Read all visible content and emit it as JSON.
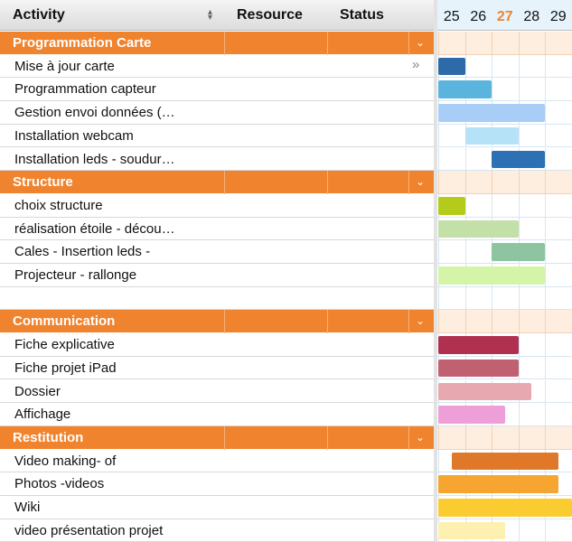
{
  "header": {
    "columns": [
      "Activity",
      "Resource",
      "Status"
    ]
  },
  "days": [
    25,
    26,
    27,
    28,
    29
  ],
  "today": 27,
  "groups": [
    {
      "name": "Programmation Carte",
      "tasks": [
        {
          "name": "Mise à jour carte",
          "start": 25,
          "end": 26,
          "color": "#2d6aa8"
        },
        {
          "name": "Programmation capteur",
          "start": 25,
          "end": 27,
          "color": "#5ab4dd"
        },
        {
          "name": "Gestion envoi données (…",
          "start": 25,
          "end": 29,
          "color": "#a8cdf7"
        },
        {
          "name": "Installation webcam",
          "start": 26,
          "end": 28,
          "color": "#b5e2f7"
        },
        {
          "name": "Installation leds - soudur…",
          "start": 27,
          "end": 29,
          "color": "#2b71b3"
        }
      ]
    },
    {
      "name": "Structure",
      "tasks": [
        {
          "name": "choix structure",
          "start": 25,
          "end": 26,
          "color": "#b5cb1c"
        },
        {
          "name": "réalisation étoile - décou…",
          "start": 25,
          "end": 28,
          "color": "#c2e0a8"
        },
        {
          "name": "Cales - Insertion leds -",
          "start": 27,
          "end": 29,
          "color": "#8fc4a0"
        },
        {
          "name": "Projecteur - rallonge",
          "start": 25,
          "end": 29,
          "color": "#d4f5a8"
        },
        {
          "name": null
        }
      ]
    },
    {
      "name": "Communication",
      "tasks": [
        {
          "name": "Fiche explicative",
          "start": 25,
          "end": 28,
          "color": "#b03050"
        },
        {
          "name": "Fiche projet iPad",
          "start": 25,
          "end": 28,
          "color": "#c06070"
        },
        {
          "name": "Dossier",
          "start": 25,
          "end": 28.5,
          "color": "#e8a8b0"
        },
        {
          "name": "Affichage",
          "start": 25,
          "end": 27.5,
          "color": "#ee9fd8"
        }
      ]
    },
    {
      "name": "Restitution",
      "tasks": [
        {
          "name": "Video making- of",
          "start": 25.5,
          "end": 29.5,
          "color": "#e0782a"
        },
        {
          "name": "Photos -videos",
          "start": 25,
          "end": 29.5,
          "color": "#f5a530"
        },
        {
          "name": "Wiki",
          "start": 25,
          "end": 30,
          "color": "#fbcc30"
        },
        {
          "name": "video présentation projet",
          "start": 25,
          "end": 27.5,
          "color": "#fdf0b0"
        }
      ]
    }
  ]
}
